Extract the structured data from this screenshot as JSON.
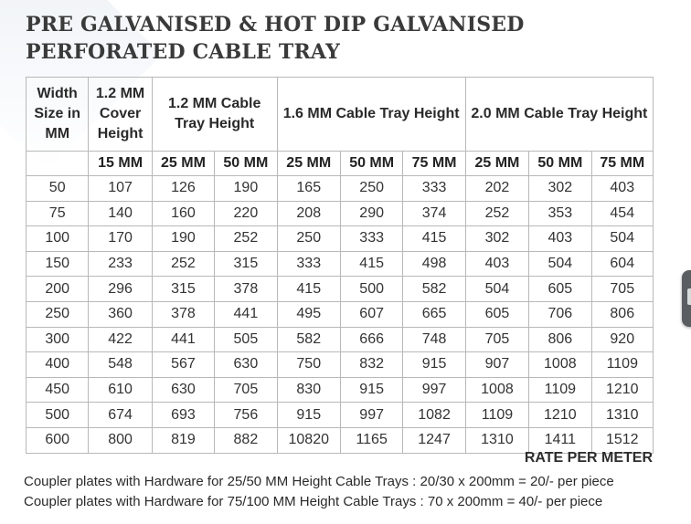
{
  "title": {
    "line1": "PRE GALVANISED & HOT DIP GALVANISED",
    "line2": "PERFORATED CABLE TRAY"
  },
  "table": {
    "group_headers": [
      "Width Size in MM",
      "1.2 MM Cover Height",
      "1.2 MM Cable Tray Height",
      "1.6 MM Cable Tray Height",
      "2.0 MM Cable Tray Height"
    ],
    "sub_headers": [
      "",
      "15 MM",
      "25 MM",
      "50 MM",
      "25 MM",
      "50 MM",
      "75 MM",
      "25 MM",
      "50 MM",
      "75 MM"
    ],
    "rows": [
      [
        "50",
        "107",
        "126",
        "190",
        "165",
        "250",
        "333",
        "202",
        "302",
        "403"
      ],
      [
        "75",
        "140",
        "160",
        "220",
        "208",
        "290",
        "374",
        "252",
        "353",
        "454"
      ],
      [
        "100",
        "170",
        "190",
        "252",
        "250",
        "333",
        "415",
        "302",
        "403",
        "504"
      ],
      [
        "150",
        "233",
        "252",
        "315",
        "333",
        "415",
        "498",
        "403",
        "504",
        "604"
      ],
      [
        "200",
        "296",
        "315",
        "378",
        "415",
        "500",
        "582",
        "504",
        "605",
        "705"
      ],
      [
        "250",
        "360",
        "378",
        "441",
        "495",
        "607",
        "665",
        "605",
        "706",
        "806"
      ],
      [
        "300",
        "422",
        "441",
        "505",
        "582",
        "666",
        "748",
        "705",
        "806",
        "920"
      ],
      [
        "400",
        "548",
        "567",
        "630",
        "750",
        "832",
        "915",
        "907",
        "1008",
        "1109"
      ],
      [
        "450",
        "610",
        "630",
        "705",
        "830",
        "915",
        "997",
        "1008",
        "1109",
        "1210"
      ],
      [
        "500",
        "674",
        "693",
        "756",
        "915",
        "997",
        "1082",
        "1109",
        "1210",
        "1310"
      ],
      [
        "600",
        "800",
        "819",
        "882",
        "10820",
        "1165",
        "1247",
        "1310",
        "1411",
        "1512"
      ]
    ]
  },
  "rate_label": "RATE PER METER",
  "notes": [
    "Coupler plates with Hardware for 25/50 MM Height Cable Trays : 20/30 x 200mm = 20/- per piece",
    "Coupler plates with Hardware for 75/100 MM Height Cable Trays : 70 x 200mm = 40/- per piece"
  ]
}
